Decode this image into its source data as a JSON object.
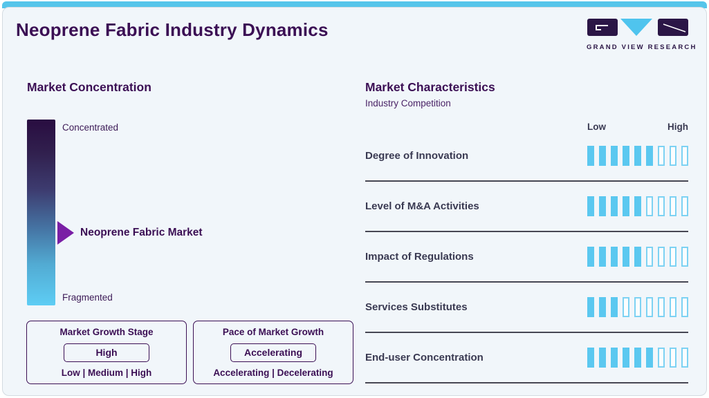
{
  "page": {
    "title": "Neoprene Fabric Industry Dynamics"
  },
  "logo": {
    "brand": "GRAND VIEW RESEARCH"
  },
  "colors": {
    "accent_cyan": "#56c5ea",
    "brand_purple": "#3b0f54",
    "label_slate": "#3a3a52",
    "marker_purple": "#7a1fa5",
    "segment_fill": "#5bc8f0"
  },
  "market_concentration": {
    "heading": "Market Concentration",
    "scale_top_label": "Concentrated",
    "scale_bottom_label": "Fragmented",
    "marker_label": "Neoprene Fabric Market",
    "marker_position_pct": 61
  },
  "growth_boxes": [
    {
      "title": "Market Growth Stage",
      "value": "High",
      "options": "Low | Medium | High"
    },
    {
      "title": "Pace of Market Growth",
      "value": "Accelerating",
      "options": "Accelerating | Decelerating"
    }
  ],
  "market_characteristics": {
    "heading": "Market Characteristics",
    "subheading": "Industry Competition",
    "scale_left_label": "Low",
    "scale_right_label": "High",
    "segments_total": 9,
    "rows": [
      {
        "label": "Degree of Innovation",
        "filled": 6
      },
      {
        "label": "Level of M&A Activities",
        "filled": 5
      },
      {
        "label": "Impact of Regulations",
        "filled": 5
      },
      {
        "label": "Services Substitutes",
        "filled": 3
      },
      {
        "label": "End-user Concentration",
        "filled": 6
      }
    ]
  },
  "chart_data": {
    "type": "bar",
    "title": "Neoprene Fabric Industry Dynamics",
    "subtitle": "Market Characteristics — Industry Competition",
    "categories": [
      "Degree of Innovation",
      "Level of M&A Activities",
      "Impact of Regulations",
      "Services Substitutes",
      "End-user Concentration"
    ],
    "values": [
      6,
      5,
      5,
      3,
      6
    ],
    "value_scale": {
      "min": 0,
      "max": 9,
      "left_label": "Low",
      "right_label": "High"
    },
    "annotations": [
      "Market Concentration scale: Concentrated (top) to Fragmented (bottom); Neoprene Fabric Market marked ~61% toward Fragmented",
      "Market Growth Stage: High (options: Low | Medium | High)",
      "Pace of Market Growth: Accelerating (options: Accelerating | Decelerating)"
    ],
    "legend_position": "none",
    "grid": false
  }
}
